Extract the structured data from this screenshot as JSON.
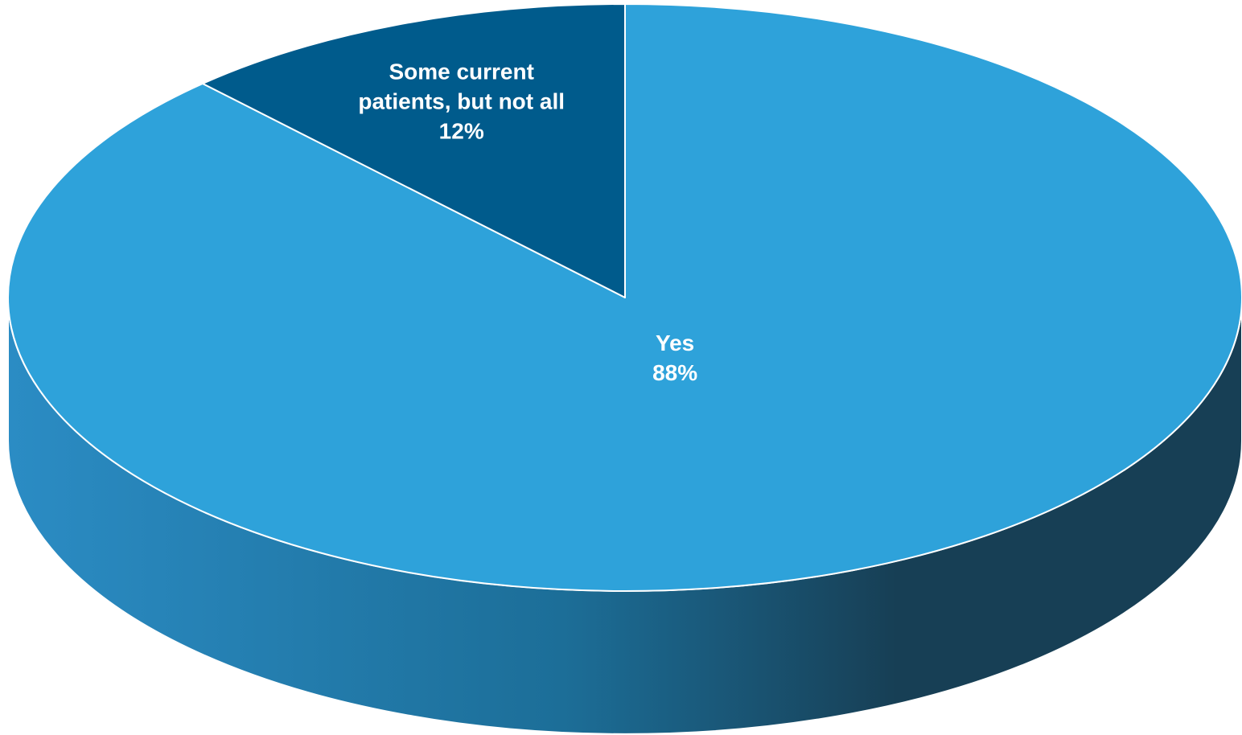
{
  "chart_data": {
    "type": "pie",
    "style": "3d",
    "start_angle_deg": 0,
    "direction": "clockwise",
    "slices": [
      {
        "label": "Yes",
        "value": 88,
        "value_label": "88%",
        "color": "#2EA2DA"
      },
      {
        "label": "Some current patients, but not all",
        "label_lines": [
          "Some current",
          "patients, but not all"
        ],
        "value": 12,
        "value_label": "12%",
        "color": "#005B8C"
      }
    ],
    "side_colors": [
      "#2B8CC4",
      "#1C6E98",
      "#173F55"
    ],
    "edge_color": "#FFFFFF",
    "label_color": "#FFFFFF"
  }
}
